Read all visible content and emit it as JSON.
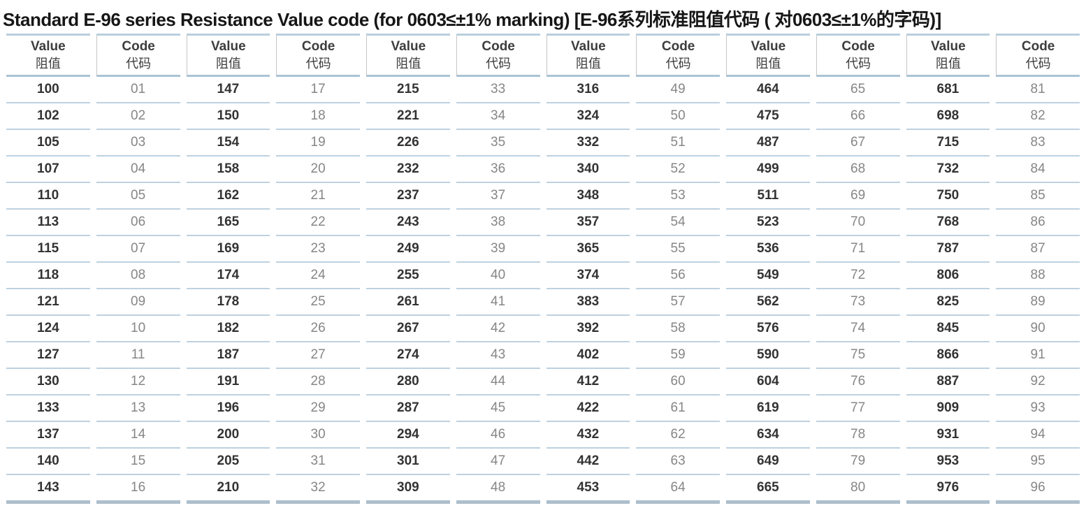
{
  "title": "Standard E-96 series Resistance Value code (for 0603≤±1% marking) [E-96系列标准阻值代码 ( 对0603≤±1%的字码)]",
  "colors": {
    "accent_row_line": "#bdd1e0",
    "accent_header_line": "#a9c3d5",
    "accent_bottom_line": "#adbecc",
    "value_text": "#333333",
    "code_text": "#868686"
  },
  "table": {
    "pairs": 6,
    "header": {
      "value_en": "Value",
      "value_zh": "阻值",
      "code_en": "Code",
      "code_zh": "代码"
    },
    "rows": [
      [
        "100",
        "01",
        "147",
        "17",
        "215",
        "33",
        "316",
        "49",
        "464",
        "65",
        "681",
        "81"
      ],
      [
        "102",
        "02",
        "150",
        "18",
        "221",
        "34",
        "324",
        "50",
        "475",
        "66",
        "698",
        "82"
      ],
      [
        "105",
        "03",
        "154",
        "19",
        "226",
        "35",
        "332",
        "51",
        "487",
        "67",
        "715",
        "83"
      ],
      [
        "107",
        "04",
        "158",
        "20",
        "232",
        "36",
        "340",
        "52",
        "499",
        "68",
        "732",
        "84"
      ],
      [
        "110",
        "05",
        "162",
        "21",
        "237",
        "37",
        "348",
        "53",
        "511",
        "69",
        "750",
        "85"
      ],
      [
        "113",
        "06",
        "165",
        "22",
        "243",
        "38",
        "357",
        "54",
        "523",
        "70",
        "768",
        "86"
      ],
      [
        "115",
        "07",
        "169",
        "23",
        "249",
        "39",
        "365",
        "55",
        "536",
        "71",
        "787",
        "87"
      ],
      [
        "118",
        "08",
        "174",
        "24",
        "255",
        "40",
        "374",
        "56",
        "549",
        "72",
        "806",
        "88"
      ],
      [
        "121",
        "09",
        "178",
        "25",
        "261",
        "41",
        "383",
        "57",
        "562",
        "73",
        "825",
        "89"
      ],
      [
        "124",
        "10",
        "182",
        "26",
        "267",
        "42",
        "392",
        "58",
        "576",
        "74",
        "845",
        "90"
      ],
      [
        "127",
        "11",
        "187",
        "27",
        "274",
        "43",
        "402",
        "59",
        "590",
        "75",
        "866",
        "91"
      ],
      [
        "130",
        "12",
        "191",
        "28",
        "280",
        "44",
        "412",
        "60",
        "604",
        "76",
        "887",
        "92"
      ],
      [
        "133",
        "13",
        "196",
        "29",
        "287",
        "45",
        "422",
        "61",
        "619",
        "77",
        "909",
        "93"
      ],
      [
        "137",
        "14",
        "200",
        "30",
        "294",
        "46",
        "432",
        "62",
        "634",
        "78",
        "931",
        "94"
      ],
      [
        "140",
        "15",
        "205",
        "31",
        "301",
        "47",
        "442",
        "63",
        "649",
        "79",
        "953",
        "95"
      ],
      [
        "143",
        "16",
        "210",
        "32",
        "309",
        "48",
        "453",
        "64",
        "665",
        "80",
        "976",
        "96"
      ]
    ]
  }
}
